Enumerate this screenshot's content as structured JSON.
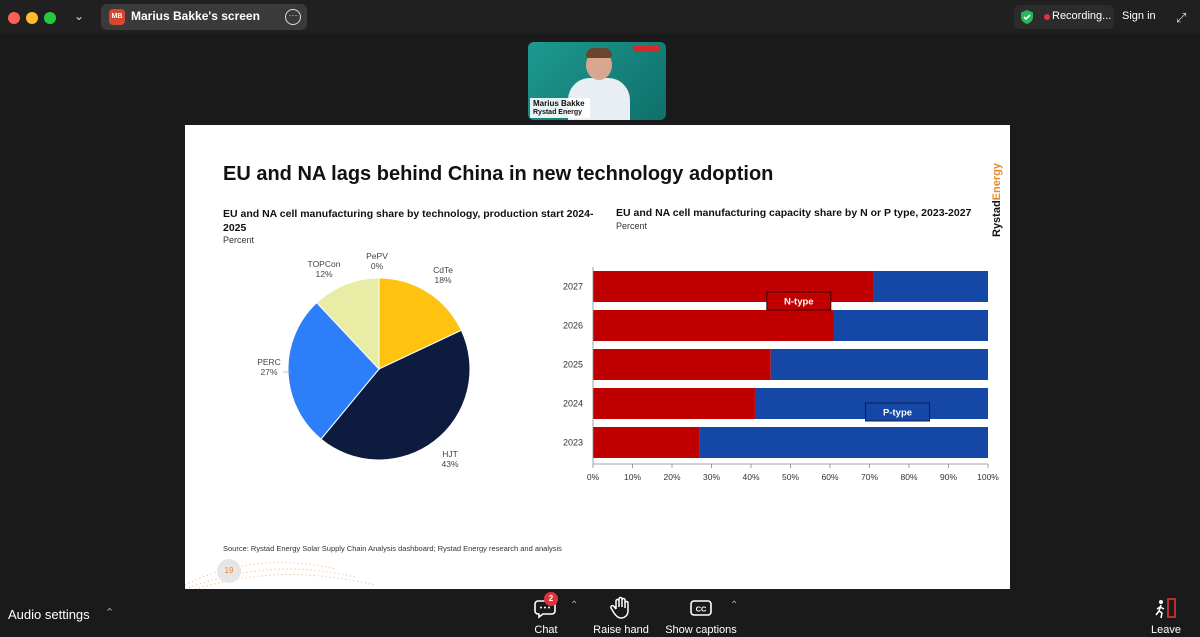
{
  "window": {
    "share_badge": "MB",
    "share_label": "Marius Bakke's screen",
    "recording_label": "Recording...",
    "signin_label": "Sign in"
  },
  "video": {
    "name": "Marius Bakke",
    "org": "Rystad Energy"
  },
  "slide": {
    "title": "EU and NA lags behind China in new technology adoption",
    "brand_a": "Rystad",
    "brand_b": "Energy",
    "pie_title": "EU and NA cell manufacturing share by technology, production start 2024-2025",
    "pie_sub": "Percent",
    "bar_title": "EU and NA cell manufacturing capacity share by N or P type, 2023-2027",
    "bar_sub": "Percent",
    "source": "Source: Rystad Energy Solar Supply Chain Analysis dashboard; Rystad Energy research and analysis",
    "page_number": "19"
  },
  "chart_data": [
    {
      "type": "pie",
      "title": "EU and NA cell manufacturing share by technology, production start 2024-2025",
      "subtitle": "Percent",
      "slices": [
        {
          "label": "PePV",
          "value": 0,
          "pct_label": "0%",
          "color": "#8a8a8a"
        },
        {
          "label": "CdTe",
          "value": 18,
          "pct_label": "18%",
          "color": "#ffc20e"
        },
        {
          "label": "HJT",
          "value": 43,
          "pct_label": "43%",
          "color": "#0d1b3e"
        },
        {
          "label": "PERC",
          "value": 27,
          "pct_label": "27%",
          "color": "#2d7ff9"
        },
        {
          "label": "TOPCon",
          "value": 12,
          "pct_label": "12%",
          "color": "#e8eca4"
        }
      ]
    },
    {
      "type": "bar",
      "orientation": "horizontal",
      "stacked": true,
      "title": "EU and NA cell manufacturing capacity share by N or P type, 2023-2027",
      "subtitle": "Percent",
      "categories": [
        "2027",
        "2026",
        "2025",
        "2024",
        "2023"
      ],
      "series": [
        {
          "name": "N-type",
          "values": [
            71,
            61,
            45,
            41,
            27
          ],
          "color": "#c00000"
        },
        {
          "name": "P-type",
          "values": [
            29,
            39,
            55,
            59,
            73
          ],
          "color": "#1547a6"
        }
      ],
      "xlim": [
        0,
        100
      ],
      "xticks": [
        "0%",
        "10%",
        "20%",
        "30%",
        "40%",
        "50%",
        "60%",
        "70%",
        "80%",
        "90%",
        "100%"
      ]
    }
  ],
  "bottom_bar": {
    "audio_settings": "Audio settings",
    "chat_label": "Chat",
    "chat_count": "2",
    "raise_hand_label": "Raise hand",
    "captions_label": "Show captions",
    "captions_icon_text": "CC",
    "leave_label": "Leave"
  }
}
